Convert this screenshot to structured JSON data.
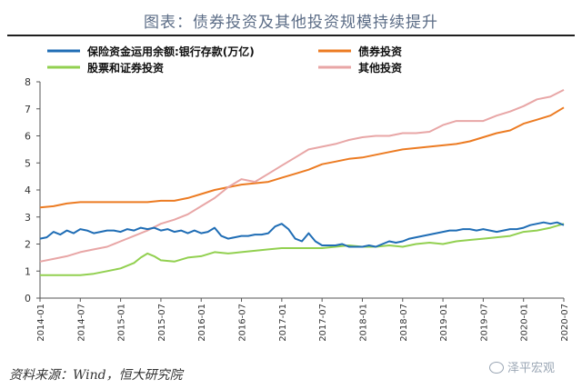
{
  "title": "图表：债券投资及其他投资规模持续提升",
  "source": "资料来源：Wind，恒大研究院",
  "watermark": "泽平宏观",
  "chart_data": {
    "type": "line",
    "legend": "top-left, two columns",
    "grid": false,
    "ylim": [
      0,
      8
    ],
    "yticks": [
      0,
      1,
      2,
      3,
      4,
      5,
      6,
      7,
      8
    ],
    "xlim": [
      "2014-01",
      "2020-07"
    ],
    "xticks": [
      "2014-01",
      "2014-07",
      "2015-01",
      "2015-07",
      "2016-01",
      "2016-07",
      "2017-01",
      "2017-07",
      "2018-01",
      "2018-07",
      "2019-01",
      "2019-07",
      "2020-01",
      "2020-07"
    ],
    "series": [
      {
        "name": "保险资金运用余额:银行存款(万亿)",
        "color": "#1f6db5",
        "points": [
          [
            "2014-01",
            2.2
          ],
          [
            "2014-02",
            2.25
          ],
          [
            "2014-03",
            2.45
          ],
          [
            "2014-04",
            2.35
          ],
          [
            "2014-05",
            2.5
          ],
          [
            "2014-06",
            2.4
          ],
          [
            "2014-07",
            2.55
          ],
          [
            "2014-08",
            2.5
          ],
          [
            "2014-09",
            2.4
          ],
          [
            "2014-10",
            2.45
          ],
          [
            "2014-11",
            2.5
          ],
          [
            "2014-12",
            2.5
          ],
          [
            "2015-01",
            2.45
          ],
          [
            "2015-02",
            2.55
          ],
          [
            "2015-03",
            2.5
          ],
          [
            "2015-04",
            2.6
          ],
          [
            "2015-05",
            2.55
          ],
          [
            "2015-06",
            2.6
          ],
          [
            "2015-07",
            2.5
          ],
          [
            "2015-08",
            2.55
          ],
          [
            "2015-09",
            2.45
          ],
          [
            "2015-10",
            2.5
          ],
          [
            "2015-11",
            2.4
          ],
          [
            "2015-12",
            2.5
          ],
          [
            "2016-01",
            2.4
          ],
          [
            "2016-02",
            2.45
          ],
          [
            "2016-03",
            2.6
          ],
          [
            "2016-04",
            2.3
          ],
          [
            "2016-05",
            2.2
          ],
          [
            "2016-06",
            2.25
          ],
          [
            "2016-07",
            2.3
          ],
          [
            "2016-08",
            2.3
          ],
          [
            "2016-09",
            2.35
          ],
          [
            "2016-10",
            2.35
          ],
          [
            "2016-11",
            2.4
          ],
          [
            "2016-12",
            2.65
          ],
          [
            "2017-01",
            2.75
          ],
          [
            "2017-02",
            2.55
          ],
          [
            "2017-03",
            2.2
          ],
          [
            "2017-04",
            2.1
          ],
          [
            "2017-05",
            2.4
          ],
          [
            "2017-06",
            2.1
          ],
          [
            "2017-07",
            1.95
          ],
          [
            "2017-08",
            1.95
          ],
          [
            "2017-09",
            1.95
          ],
          [
            "2017-10",
            2.0
          ],
          [
            "2017-11",
            1.9
          ],
          [
            "2017-12",
            1.9
          ],
          [
            "2018-01",
            1.9
          ],
          [
            "2018-02",
            1.95
          ],
          [
            "2018-03",
            1.9
          ],
          [
            "2018-04",
            2.0
          ],
          [
            "2018-05",
            2.1
          ],
          [
            "2018-06",
            2.05
          ],
          [
            "2018-07",
            2.1
          ],
          [
            "2018-08",
            2.2
          ],
          [
            "2018-09",
            2.25
          ],
          [
            "2018-10",
            2.3
          ],
          [
            "2018-11",
            2.35
          ],
          [
            "2018-12",
            2.4
          ],
          [
            "2019-01",
            2.45
          ],
          [
            "2019-02",
            2.5
          ],
          [
            "2019-03",
            2.5
          ],
          [
            "2019-04",
            2.55
          ],
          [
            "2019-05",
            2.55
          ],
          [
            "2019-06",
            2.5
          ],
          [
            "2019-07",
            2.55
          ],
          [
            "2019-08",
            2.5
          ],
          [
            "2019-09",
            2.45
          ],
          [
            "2019-10",
            2.5
          ],
          [
            "2019-11",
            2.55
          ],
          [
            "2019-12",
            2.55
          ],
          [
            "2020-01",
            2.6
          ],
          [
            "2020-02",
            2.7
          ],
          [
            "2020-03",
            2.75
          ],
          [
            "2020-04",
            2.8
          ],
          [
            "2020-05",
            2.75
          ],
          [
            "2020-06",
            2.8
          ],
          [
            "2020-07",
            2.7
          ]
        ]
      },
      {
        "name": "债券投资",
        "color": "#ec7b22",
        "points": [
          [
            "2014-01",
            3.35
          ],
          [
            "2014-03",
            3.4
          ],
          [
            "2014-05",
            3.5
          ],
          [
            "2014-07",
            3.55
          ],
          [
            "2014-09",
            3.55
          ],
          [
            "2014-11",
            3.55
          ],
          [
            "2015-01",
            3.55
          ],
          [
            "2015-03",
            3.55
          ],
          [
            "2015-05",
            3.55
          ],
          [
            "2015-07",
            3.6
          ],
          [
            "2015-09",
            3.6
          ],
          [
            "2015-11",
            3.7
          ],
          [
            "2016-01",
            3.85
          ],
          [
            "2016-03",
            4.0
          ],
          [
            "2016-05",
            4.1
          ],
          [
            "2016-07",
            4.2
          ],
          [
            "2016-09",
            4.25
          ],
          [
            "2016-11",
            4.3
          ],
          [
            "2017-01",
            4.45
          ],
          [
            "2017-03",
            4.6
          ],
          [
            "2017-05",
            4.75
          ],
          [
            "2017-07",
            4.95
          ],
          [
            "2017-09",
            5.05
          ],
          [
            "2017-11",
            5.15
          ],
          [
            "2018-01",
            5.2
          ],
          [
            "2018-03",
            5.3
          ],
          [
            "2018-05",
            5.4
          ],
          [
            "2018-07",
            5.5
          ],
          [
            "2018-09",
            5.55
          ],
          [
            "2018-11",
            5.6
          ],
          [
            "2019-01",
            5.65
          ],
          [
            "2019-03",
            5.7
          ],
          [
            "2019-05",
            5.8
          ],
          [
            "2019-07",
            5.95
          ],
          [
            "2019-09",
            6.1
          ],
          [
            "2019-11",
            6.2
          ],
          [
            "2020-01",
            6.45
          ],
          [
            "2020-03",
            6.6
          ],
          [
            "2020-05",
            6.75
          ],
          [
            "2020-07",
            7.05
          ]
        ]
      },
      {
        "name": "股票和证券投资",
        "color": "#92d050",
        "points": [
          [
            "2014-01",
            0.85
          ],
          [
            "2014-03",
            0.85
          ],
          [
            "2014-05",
            0.85
          ],
          [
            "2014-07",
            0.85
          ],
          [
            "2014-09",
            0.9
          ],
          [
            "2014-11",
            1.0
          ],
          [
            "2015-01",
            1.1
          ],
          [
            "2015-03",
            1.3
          ],
          [
            "2015-04",
            1.5
          ],
          [
            "2015-05",
            1.65
          ],
          [
            "2015-06",
            1.55
          ],
          [
            "2015-07",
            1.4
          ],
          [
            "2015-09",
            1.35
          ],
          [
            "2015-11",
            1.5
          ],
          [
            "2016-01",
            1.55
          ],
          [
            "2016-03",
            1.7
          ],
          [
            "2016-05",
            1.65
          ],
          [
            "2016-07",
            1.7
          ],
          [
            "2016-09",
            1.75
          ],
          [
            "2016-11",
            1.8
          ],
          [
            "2017-01",
            1.85
          ],
          [
            "2017-03",
            1.85
          ],
          [
            "2017-05",
            1.85
          ],
          [
            "2017-07",
            1.85
          ],
          [
            "2017-09",
            1.9
          ],
          [
            "2017-11",
            1.95
          ],
          [
            "2018-01",
            1.9
          ],
          [
            "2018-03",
            1.9
          ],
          [
            "2018-05",
            1.95
          ],
          [
            "2018-07",
            1.9
          ],
          [
            "2018-09",
            2.0
          ],
          [
            "2018-11",
            2.05
          ],
          [
            "2019-01",
            2.0
          ],
          [
            "2019-03",
            2.1
          ],
          [
            "2019-05",
            2.15
          ],
          [
            "2019-07",
            2.2
          ],
          [
            "2019-09",
            2.25
          ],
          [
            "2019-11",
            2.3
          ],
          [
            "2020-01",
            2.45
          ],
          [
            "2020-03",
            2.5
          ],
          [
            "2020-05",
            2.6
          ],
          [
            "2020-07",
            2.75
          ]
        ]
      },
      {
        "name": "其他投资",
        "color": "#e8a6a6",
        "points": [
          [
            "2014-01",
            1.35
          ],
          [
            "2014-03",
            1.45
          ],
          [
            "2014-05",
            1.55
          ],
          [
            "2014-07",
            1.7
          ],
          [
            "2014-09",
            1.8
          ],
          [
            "2014-11",
            1.9
          ],
          [
            "2015-01",
            2.1
          ],
          [
            "2015-03",
            2.3
          ],
          [
            "2015-05",
            2.5
          ],
          [
            "2015-07",
            2.75
          ],
          [
            "2015-09",
            2.9
          ],
          [
            "2015-11",
            3.1
          ],
          [
            "2016-01",
            3.4
          ],
          [
            "2016-03",
            3.7
          ],
          [
            "2016-05",
            4.1
          ],
          [
            "2016-07",
            4.4
          ],
          [
            "2016-09",
            4.3
          ],
          [
            "2016-11",
            4.6
          ],
          [
            "2017-01",
            4.9
          ],
          [
            "2017-03",
            5.2
          ],
          [
            "2017-05",
            5.5
          ],
          [
            "2017-07",
            5.6
          ],
          [
            "2017-09",
            5.7
          ],
          [
            "2017-11",
            5.85
          ],
          [
            "2018-01",
            5.95
          ],
          [
            "2018-03",
            6.0
          ],
          [
            "2018-05",
            6.0
          ],
          [
            "2018-07",
            6.1
          ],
          [
            "2018-09",
            6.1
          ],
          [
            "2018-11",
            6.15
          ],
          [
            "2019-01",
            6.4
          ],
          [
            "2019-03",
            6.55
          ],
          [
            "2019-05",
            6.55
          ],
          [
            "2019-07",
            6.55
          ],
          [
            "2019-09",
            6.75
          ],
          [
            "2019-11",
            6.9
          ],
          [
            "2020-01",
            7.1
          ],
          [
            "2020-03",
            7.35
          ],
          [
            "2020-05",
            7.45
          ],
          [
            "2020-07",
            7.7
          ]
        ]
      }
    ]
  }
}
